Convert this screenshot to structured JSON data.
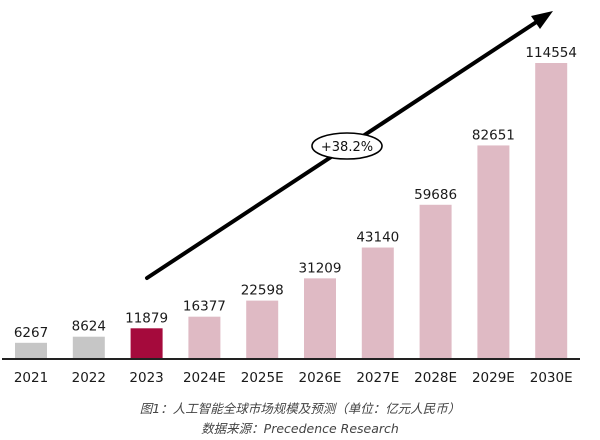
{
  "chart_data": {
    "type": "bar",
    "title": "图1：人工智能全球市场规模及预测（单位：亿元人民币）",
    "source": "数据来源：Precedence Research",
    "xlabel": "",
    "ylabel": "",
    "unit": "亿元人民币",
    "categories": [
      "2021",
      "2022",
      "2023",
      "2024E",
      "2025E",
      "2026E",
      "2027E",
      "2028E",
      "2029E",
      "2030E"
    ],
    "values": [
      6267,
      8624,
      11879,
      16377,
      22598,
      31209,
      43140,
      59686,
      82651,
      114554
    ],
    "bar_kinds": [
      "historical",
      "historical",
      "current",
      "forecast",
      "forecast",
      "forecast",
      "forecast",
      "forecast",
      "forecast",
      "forecast"
    ],
    "annotation": "+38.2%",
    "grid": false,
    "legend": null,
    "ylim": [
      0,
      114554
    ]
  },
  "colors": {
    "historical": "#c6c6c6",
    "current": "#a50a3c",
    "forecast": "#dfbac4",
    "axis": "#222222",
    "arrow": "#000000",
    "text": "#1a1a1a"
  },
  "caption": {
    "title": "图1：人工智能全球市场规模及预测（单位：亿元人民币）",
    "source": "数据来源：Precedence Research"
  }
}
